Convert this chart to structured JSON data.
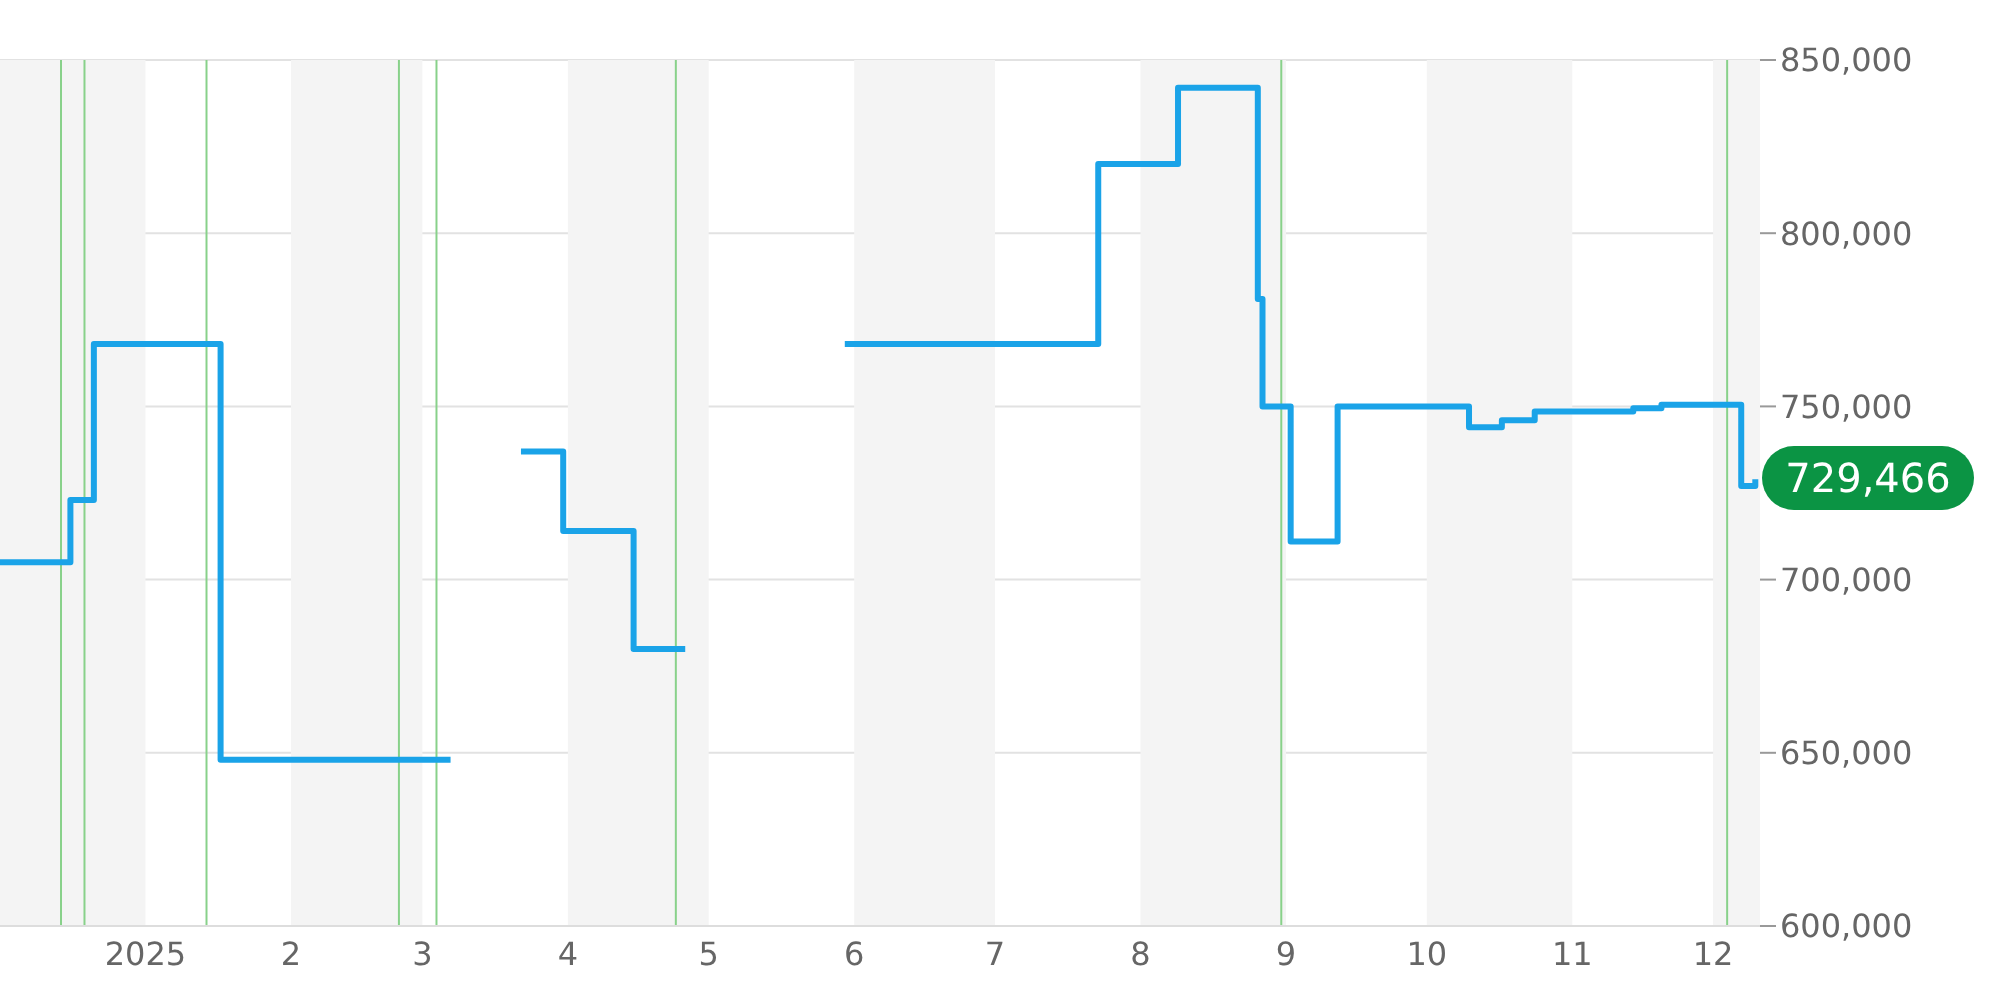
{
  "chart_data": {
    "type": "step",
    "xlim": [
      "2024-12-01",
      "2025-12-11"
    ],
    "xticks": [
      {
        "value": "2025-01-01",
        "label": "2025"
      },
      {
        "value": "2025-02-01",
        "label": "2"
      },
      {
        "value": "2025-03-01",
        "label": "3"
      },
      {
        "value": "2025-04-01",
        "label": "4"
      },
      {
        "value": "2025-05-01",
        "label": "5"
      },
      {
        "value": "2025-06-01",
        "label": "6"
      },
      {
        "value": "2025-07-01",
        "label": "7"
      },
      {
        "value": "2025-08-01",
        "label": "8"
      },
      {
        "value": "2025-09-01",
        "label": "9"
      },
      {
        "value": "2025-10-01",
        "label": "10"
      },
      {
        "value": "2025-11-01",
        "label": "11"
      },
      {
        "value": "2025-12-01",
        "label": "12"
      }
    ],
    "ylim": [
      600000,
      850000
    ],
    "yticks": [
      {
        "value": 600000,
        "label": "600,000"
      },
      {
        "value": 650000,
        "label": "650,000"
      },
      {
        "value": 700000,
        "label": "700,000"
      },
      {
        "value": 750000,
        "label": "750,000"
      },
      {
        "value": 800000,
        "label": "800,000"
      },
      {
        "value": 850000,
        "label": "850,000"
      }
    ],
    "grid": "y",
    "legend": false,
    "marker": "none",
    "line_style": "solid",
    "series": [
      {
        "color": "#1aa3e8",
        "x": [
          "2024-12-01",
          "2024-12-16",
          "2024-12-21",
          "2025-01-17",
          "2025-03-07",
          "2025-03-15",
          "2025-03-22",
          "2025-03-31",
          "2025-04-15",
          "2025-04-26",
          "2025-05-10",
          "2025-05-30",
          "2025-07-23",
          "2025-08-09",
          "2025-08-26",
          "2025-08-27",
          "2025-09-02",
          "2025-09-12",
          "2025-10-10",
          "2025-10-17",
          "2025-10-24",
          "2025-11-14",
          "2025-11-20",
          "2025-12-07",
          "2025-12-10"
        ],
        "values": [
          705000,
          723000,
          768000,
          648000,
          648000,
          null,
          737000,
          714000,
          680000,
          680000,
          null,
          768000,
          820000,
          842000,
          781000,
          750000,
          711000,
          750000,
          744000,
          746000,
          748500,
          749500,
          750500,
          727000,
          729000
        ]
      }
    ],
    "ref_lines": [
      {
        "axis": "x",
        "value": "2024-12-14",
        "color": "#88d18a"
      },
      {
        "axis": "x",
        "value": "2024-12-19",
        "color": "#88d18a"
      },
      {
        "axis": "x",
        "value": "2025-01-14",
        "color": "#88d18a"
      },
      {
        "axis": "x",
        "value": "2025-02-24",
        "color": "#88d18a"
      },
      {
        "axis": "x",
        "value": "2025-03-04",
        "color": "#88d18a"
      },
      {
        "axis": "x",
        "value": "2025-04-24",
        "color": "#88d18a"
      },
      {
        "axis": "x",
        "value": "2025-08-31",
        "color": "#88d18a"
      },
      {
        "axis": "x",
        "value": "2025-12-04",
        "color": "#88d18a"
      }
    ],
    "bands": [
      {
        "axis": "x",
        "from": "2024-12-01",
        "to": "2025-01-01",
        "color": "#f4f4f4"
      },
      {
        "axis": "x",
        "from": "2025-02-01",
        "to": "2025-03-01",
        "color": "#f4f4f4"
      },
      {
        "axis": "x",
        "from": "2025-04-01",
        "to": "2025-05-01",
        "color": "#f4f4f4"
      },
      {
        "axis": "x",
        "from": "2025-06-01",
        "to": "2025-07-01",
        "color": "#f4f4f4"
      },
      {
        "axis": "x",
        "from": "2025-08-01",
        "to": "2025-09-01",
        "color": "#f4f4f4"
      },
      {
        "axis": "x",
        "from": "2025-10-01",
        "to": "2025-11-01",
        "color": "#f4f4f4"
      },
      {
        "axis": "x",
        "from": "2025-12-01",
        "to": "2025-12-11",
        "color": "#f4f4f4"
      }
    ],
    "annotations": [
      {
        "text": "729,466",
        "x": "2025-12-10",
        "y": 729466
      }
    ]
  }
}
